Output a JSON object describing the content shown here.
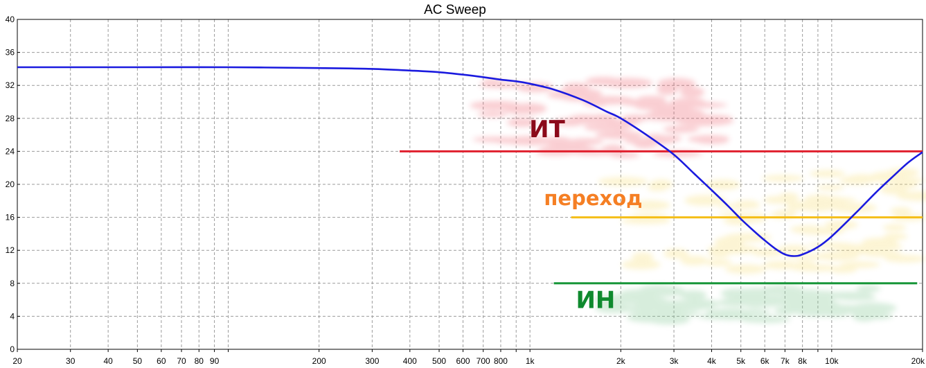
{
  "chart_data": {
    "type": "line",
    "title": "AC Sweep",
    "xlabel": "",
    "ylabel": "",
    "x_scale": "log",
    "xlim": [
      20,
      20000
    ],
    "ylim": [
      0,
      40
    ],
    "grid": true,
    "x_ticks": [
      {
        "v": 20,
        "label": "20"
      },
      {
        "v": 30,
        "label": "30"
      },
      {
        "v": 40,
        "label": "40"
      },
      {
        "v": 50,
        "label": "50"
      },
      {
        "v": 60,
        "label": "60"
      },
      {
        "v": 70,
        "label": "70"
      },
      {
        "v": 80,
        "label": "80"
      },
      {
        "v": 90,
        "label": "90"
      },
      {
        "v": 100,
        "label": ""
      },
      {
        "v": 200,
        "label": "200"
      },
      {
        "v": 300,
        "label": "300"
      },
      {
        "v": 400,
        "label": "400"
      },
      {
        "v": 500,
        "label": "500"
      },
      {
        "v": 600,
        "label": "600"
      },
      {
        "v": 700,
        "label": "700"
      },
      {
        "v": 800,
        "label": "800"
      },
      {
        "v": 900,
        "label": ""
      },
      {
        "v": 1000,
        "label": "1k"
      },
      {
        "v": 2000,
        "label": "2k"
      },
      {
        "v": 3000,
        "label": "3k"
      },
      {
        "v": 4000,
        "label": "4k"
      },
      {
        "v": 5000,
        "label": "5k"
      },
      {
        "v": 6000,
        "label": "6k"
      },
      {
        "v": 7000,
        "label": "7k"
      },
      {
        "v": 8000,
        "label": "8k"
      },
      {
        "v": 9000,
        "label": ""
      },
      {
        "v": 10000,
        "label": "10k"
      },
      {
        "v": 20000,
        "label": "20k"
      }
    ],
    "y_ticks": [
      0,
      4,
      8,
      12,
      16,
      20,
      24,
      28,
      32,
      36,
      40
    ],
    "series": [
      {
        "name": "",
        "color": "#1a1adf",
        "points": [
          [
            20,
            34.2
          ],
          [
            50,
            34.2
          ],
          [
            100,
            34.2
          ],
          [
            200,
            34.1
          ],
          [
            300,
            34.0
          ],
          [
            400,
            33.8
          ],
          [
            500,
            33.6
          ],
          [
            600,
            33.3
          ],
          [
            700,
            33.0
          ],
          [
            800,
            32.7
          ],
          [
            900,
            32.5
          ],
          [
            1000,
            32.2
          ],
          [
            1200,
            31.5
          ],
          [
            1500,
            30.2
          ],
          [
            1800,
            28.8
          ],
          [
            2000,
            28.0
          ],
          [
            2500,
            25.7
          ],
          [
            3000,
            23.6
          ],
          [
            3500,
            21.3
          ],
          [
            4000,
            19.3
          ],
          [
            4500,
            17.5
          ],
          [
            5000,
            15.8
          ],
          [
            5500,
            14.4
          ],
          [
            6000,
            13.2
          ],
          [
            6500,
            12.2
          ],
          [
            7000,
            11.5
          ],
          [
            7500,
            11.3
          ],
          [
            8000,
            11.5
          ],
          [
            9000,
            12.4
          ],
          [
            10000,
            13.7
          ],
          [
            12000,
            16.5
          ],
          [
            14000,
            19.0
          ],
          [
            16000,
            21.0
          ],
          [
            18000,
            22.7
          ],
          [
            20000,
            23.9
          ]
        ]
      }
    ],
    "reference_lines": [
      {
        "label": "ИТ",
        "y": 24,
        "x_start": 370,
        "x_end": 20000,
        "color": "#e01f2d",
        "label_color": "#8b0a1a"
      },
      {
        "label": "переход",
        "y": 16,
        "x_start": 1370,
        "x_end": 20000,
        "color": "#f5be18",
        "label_color": "#f57f24"
      },
      {
        "label": "ИН",
        "y": 8,
        "x_start": 1200,
        "x_end": 19200,
        "color": "#179638",
        "label_color": "#0f8a2e"
      }
    ],
    "highlight_regions": [
      {
        "color": "#ef6a77",
        "x_range": [
          750,
          4000
        ],
        "y_range": [
          23.5,
          32.5
        ]
      },
      {
        "color": "#f8e07c",
        "x_range": [
          2000,
          20000
        ],
        "y_range": [
          9.5,
          21.5
        ]
      },
      {
        "color": "#86c996",
        "x_range": [
          1700,
          14000
        ],
        "y_range": [
          3.5,
          7.5
        ]
      }
    ]
  }
}
